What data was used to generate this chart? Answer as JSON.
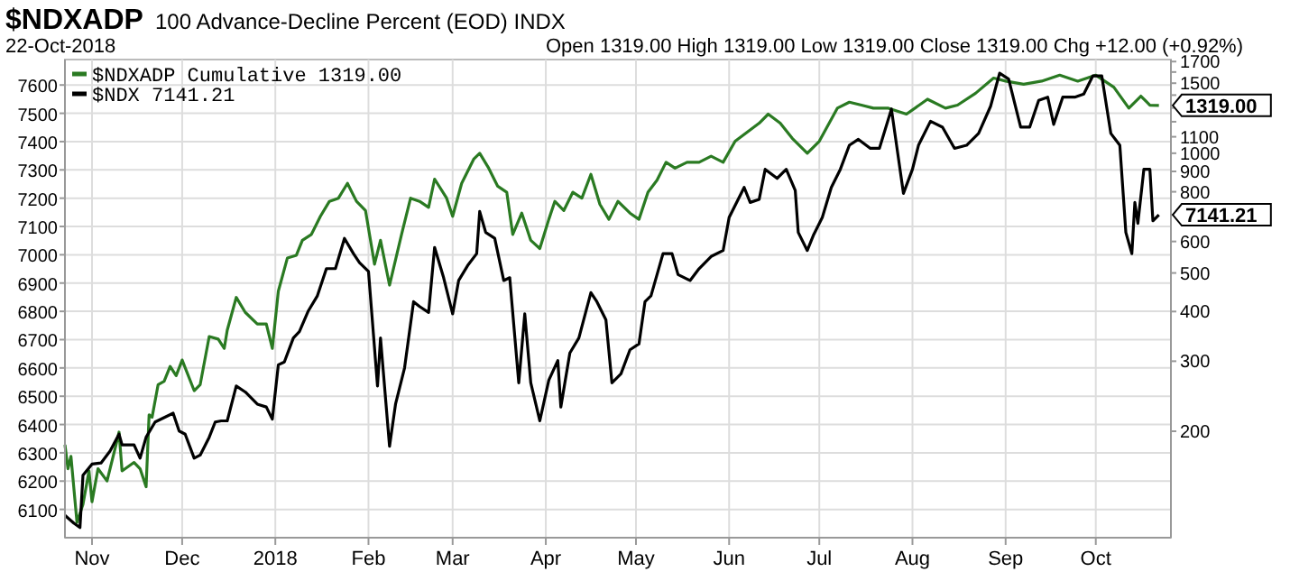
{
  "chart_data": {
    "type": "line",
    "title": "$NDXADP",
    "subtitle": "100 Advance-Decline Percent (EOD)  INDX",
    "annotations": [
      "22-Oct-2018",
      "Open 1319.00  High 1319.00  Low 1319.00  Close 1319.00  Chg +12.00 (+0.92%)",
      "1319.00",
      "7141.21"
    ],
    "xlim": [
      "2017-10-23",
      "2018-10-26"
    ],
    "xticks": [
      {
        "value": "2017-11-01",
        "label": "Nov"
      },
      {
        "value": "2017-12-01",
        "label": "Dec"
      },
      {
        "value": "2018-01-01",
        "label": "2018"
      },
      {
        "value": "2018-02-01",
        "label": "Feb"
      },
      {
        "value": "2018-03-01",
        "label": "Mar"
      },
      {
        "value": "2018-04-01",
        "label": "Apr"
      },
      {
        "value": "2018-05-01",
        "label": "May"
      },
      {
        "value": "2018-06-01",
        "label": "Jun"
      },
      {
        "value": "2018-07-01",
        "label": "Jul"
      },
      {
        "value": "2018-08-01",
        "label": "Aug"
      },
      {
        "value": "2018-09-01",
        "label": "Sep"
      },
      {
        "value": "2018-10-01",
        "label": "Oct"
      }
    ],
    "ylim": [
      6000,
      7690
    ],
    "yticks": [
      6100,
      6200,
      6300,
      6400,
      6500,
      6600,
      6700,
      6800,
      6900,
      7000,
      7100,
      7200,
      7300,
      7400,
      7500,
      7600
    ],
    "y2lim": [
      108,
      1720
    ],
    "y2ticks": [
      200,
      300,
      400,
      500,
      600,
      {
        "value": 700,
        "label": null
      },
      800,
      900,
      1000,
      1100,
      {
        "value": 1200,
        "label": null
      },
      {
        "value": 1300,
        "label": null
      },
      {
        "value": 1400,
        "label": null
      },
      1500,
      {
        "value": 1600,
        "label": null
      },
      1700
    ],
    "log": "y2",
    "grid": true,
    "legend": "top left",
    "line_style": "solid",
    "marker": "none",
    "series": [
      {
        "name": "$NDXADP Cumulative 1319.00",
        "color": "#2a7a22",
        "axis": "y2",
        "x": [
          "2017-10-23",
          "2017-10-24",
          "2017-10-25",
          "2017-10-27",
          "2017-10-29",
          "2017-10-31",
          "2017-11-01",
          "2017-11-03",
          "2017-11-06",
          "2017-11-09",
          "2017-11-10",
          "2017-11-11",
          "2017-11-15",
          "2017-11-17",
          "2017-11-19",
          "2017-11-20",
          "2017-11-21",
          "2017-11-23",
          "2017-11-25",
          "2017-11-27",
          "2017-11-29",
          "2017-12-01",
          "2017-12-05",
          "2017-12-07",
          "2017-12-10",
          "2017-12-13",
          "2017-12-15",
          "2017-12-16",
          "2017-12-19",
          "2017-12-22",
          "2017-12-26",
          "2017-12-29",
          "2017-12-31",
          "2018-01-02",
          "2018-01-05",
          "2018-01-08",
          "2018-01-10",
          "2018-01-13",
          "2018-01-16",
          "2018-01-19",
          "2018-01-22",
          "2018-01-25",
          "2018-01-28",
          "2018-01-31",
          "2018-02-03",
          "2018-02-05",
          "2018-02-08",
          "2018-02-12",
          "2018-02-15",
          "2018-02-18",
          "2018-02-21",
          "2018-02-23",
          "2018-02-27",
          "2018-03-01",
          "2018-03-04",
          "2018-03-08",
          "2018-03-10",
          "2018-03-13",
          "2018-03-16",
          "2018-03-19",
          "2018-03-21",
          "2018-03-24",
          "2018-03-27",
          "2018-03-30",
          "2018-04-02",
          "2018-04-04",
          "2018-04-07",
          "2018-04-10",
          "2018-04-13",
          "2018-04-16",
          "2018-04-19",
          "2018-04-22",
          "2018-04-25",
          "2018-04-29",
          "2018-05-02",
          "2018-05-05",
          "2018-05-08",
          "2018-05-11",
          "2018-05-14",
          "2018-05-18",
          "2018-05-22",
          "2018-05-26",
          "2018-05-30",
          "2018-06-03",
          "2018-06-07",
          "2018-06-11",
          "2018-06-14",
          "2018-06-18",
          "2018-06-22",
          "2018-06-27",
          "2018-07-01",
          "2018-07-07",
          "2018-07-11",
          "2018-07-15",
          "2018-07-19",
          "2018-07-24",
          "2018-07-30",
          "2018-08-06",
          "2018-08-12",
          "2018-08-16",
          "2018-08-22",
          "2018-08-28",
          "2018-09-01",
          "2018-09-07",
          "2018-09-13",
          "2018-09-19",
          "2018-09-25",
          "2018-10-01",
          "2018-10-07",
          "2018-10-12",
          "2018-10-16",
          "2018-10-19",
          "2018-10-22"
        ],
        "values": [
          185,
          161,
          173,
          118,
          131,
          159,
          133,
          161,
          150,
          185,
          199,
          159,
          167,
          161,
          145,
          220,
          217,
          262,
          267,
          291,
          276,
          302,
          253,
          262,
          346,
          341,
          323,
          359,
          434,
          398,
          372,
          372,
          323,
          450,
          545,
          554,
          604,
          625,
          694,
          757,
          771,
          840,
          757,
          718,
          526,
          604,
          466,
          625,
          771,
          757,
          731,
          861,
          771,
          694,
          840,
          966,
          1000,
          917,
          826,
          798,
          625,
          707,
          604,
          576,
          682,
          757,
          718,
          798,
          771,
          885,
          744,
          682,
          757,
          707,
          682,
          798,
          855,
          949,
          917,
          949,
          949,
          983,
          949,
          1072,
          1130,
          1190,
          1254,
          1190,
          1090,
          1000,
          1072,
          1298,
          1344,
          1321,
          1298,
          1298,
          1254,
          1367,
          1298,
          1321,
          1415,
          1545,
          1518,
          1491,
          1518,
          1571,
          1518,
          1571,
          1466,
          1298,
          1392,
          1321,
          1319
        ]
      },
      {
        "name": "$NDX 7141.21",
        "color": "#000000",
        "x": [
          "2017-10-23",
          "2017-10-26",
          "2017-10-28",
          "2017-10-29",
          "2017-11-01",
          "2017-11-04",
          "2017-11-07",
          "2017-11-10",
          "2017-11-11",
          "2017-11-15",
          "2017-11-17",
          "2017-11-19",
          "2017-11-22",
          "2017-11-28",
          "2017-11-30",
          "2017-12-02",
          "2017-12-05",
          "2017-12-07",
          "2017-12-10",
          "2017-12-12",
          "2017-12-14",
          "2017-12-16",
          "2017-12-19",
          "2017-12-22",
          "2017-12-26",
          "2017-12-29",
          "2017-12-31",
          "2018-01-02",
          "2018-01-04",
          "2018-01-07",
          "2018-01-09",
          "2018-01-12",
          "2018-01-15",
          "2018-01-18",
          "2018-01-21",
          "2018-01-24",
          "2018-01-27",
          "2018-01-29",
          "2018-02-01",
          "2018-02-04",
          "2018-02-05",
          "2018-02-08",
          "2018-02-10",
          "2018-02-13",
          "2018-02-16",
          "2018-02-18",
          "2018-02-21",
          "2018-02-23",
          "2018-02-26",
          "2018-03-01",
          "2018-03-03",
          "2018-03-06",
          "2018-03-09",
          "2018-03-10",
          "2018-03-12",
          "2018-03-15",
          "2018-03-18",
          "2018-03-20",
          "2018-03-23",
          "2018-03-25",
          "2018-03-27",
          "2018-03-30",
          "2018-04-02",
          "2018-04-05",
          "2018-04-06",
          "2018-04-09",
          "2018-04-12",
          "2018-04-16",
          "2018-04-18",
          "2018-04-21",
          "2018-04-23",
          "2018-04-26",
          "2018-04-29",
          "2018-05-02",
          "2018-05-04",
          "2018-05-06",
          "2018-05-10",
          "2018-05-13",
          "2018-05-15",
          "2018-05-19",
          "2018-05-22",
          "2018-05-26",
          "2018-05-30",
          "2018-06-01",
          "2018-06-06",
          "2018-06-08",
          "2018-06-11",
          "2018-06-13",
          "2018-06-17",
          "2018-06-20",
          "2018-06-23",
          "2018-06-24",
          "2018-06-27",
          "2018-06-29",
          "2018-07-02",
          "2018-07-05",
          "2018-07-08",
          "2018-07-11",
          "2018-07-14",
          "2018-07-18",
          "2018-07-21",
          "2018-07-25",
          "2018-07-29",
          "2018-08-01",
          "2018-08-03",
          "2018-08-07",
          "2018-08-11",
          "2018-08-15",
          "2018-08-19",
          "2018-08-23",
          "2018-08-27",
          "2018-08-30",
          "2018-09-02",
          "2018-09-06",
          "2018-09-09",
          "2018-09-12",
          "2018-09-15",
          "2018-09-17",
          "2018-09-20",
          "2018-09-24",
          "2018-09-27",
          "2018-09-30",
          "2018-10-03",
          "2018-10-06",
          "2018-10-09",
          "2018-10-11",
          "2018-10-13",
          "2018-10-14",
          "2018-10-15",
          "2018-10-17",
          "2018-10-19",
          "2018-10-20",
          "2018-10-22"
        ],
        "values": [
          6079,
          6051,
          6036,
          6221,
          6260,
          6264,
          6306,
          6366,
          6328,
          6328,
          6281,
          6355,
          6409,
          6440,
          6377,
          6366,
          6281,
          6292,
          6355,
          6409,
          6413,
          6413,
          6536,
          6515,
          6472,
          6462,
          6419,
          6611,
          6621,
          6706,
          6728,
          6802,
          6855,
          6951,
          6951,
          7058,
          7004,
          6972,
          6941,
          6536,
          6706,
          6323,
          6472,
          6600,
          6834,
          6817,
          6796,
          7026,
          6919,
          6791,
          6909,
          6962,
          7004,
          7153,
          7079,
          7058,
          6909,
          6919,
          6547,
          6791,
          6547,
          6413,
          6557,
          6626,
          6462,
          6653,
          6706,
          6866,
          6834,
          6770,
          6547,
          6579,
          6664,
          6685,
          6834,
          6855,
          7004,
          7004,
          6930,
          6909,
          6951,
          6994,
          7015,
          7132,
          7238,
          7185,
          7196,
          7302,
          7270,
          7302,
          7227,
          7079,
          7015,
          7068,
          7132,
          7238,
          7302,
          7387,
          7408,
          7376,
          7376,
          7515,
          7217,
          7302,
          7387,
          7472,
          7451,
          7376,
          7387,
          7429,
          7525,
          7642,
          7621,
          7451,
          7451,
          7546,
          7557,
          7461,
          7557,
          7557,
          7568,
          7632,
          7632,
          7429,
          7387,
          7079,
          7004,
          7185,
          7111,
          7302,
          7302,
          7120,
          7141.21
        ]
      }
    ]
  }
}
